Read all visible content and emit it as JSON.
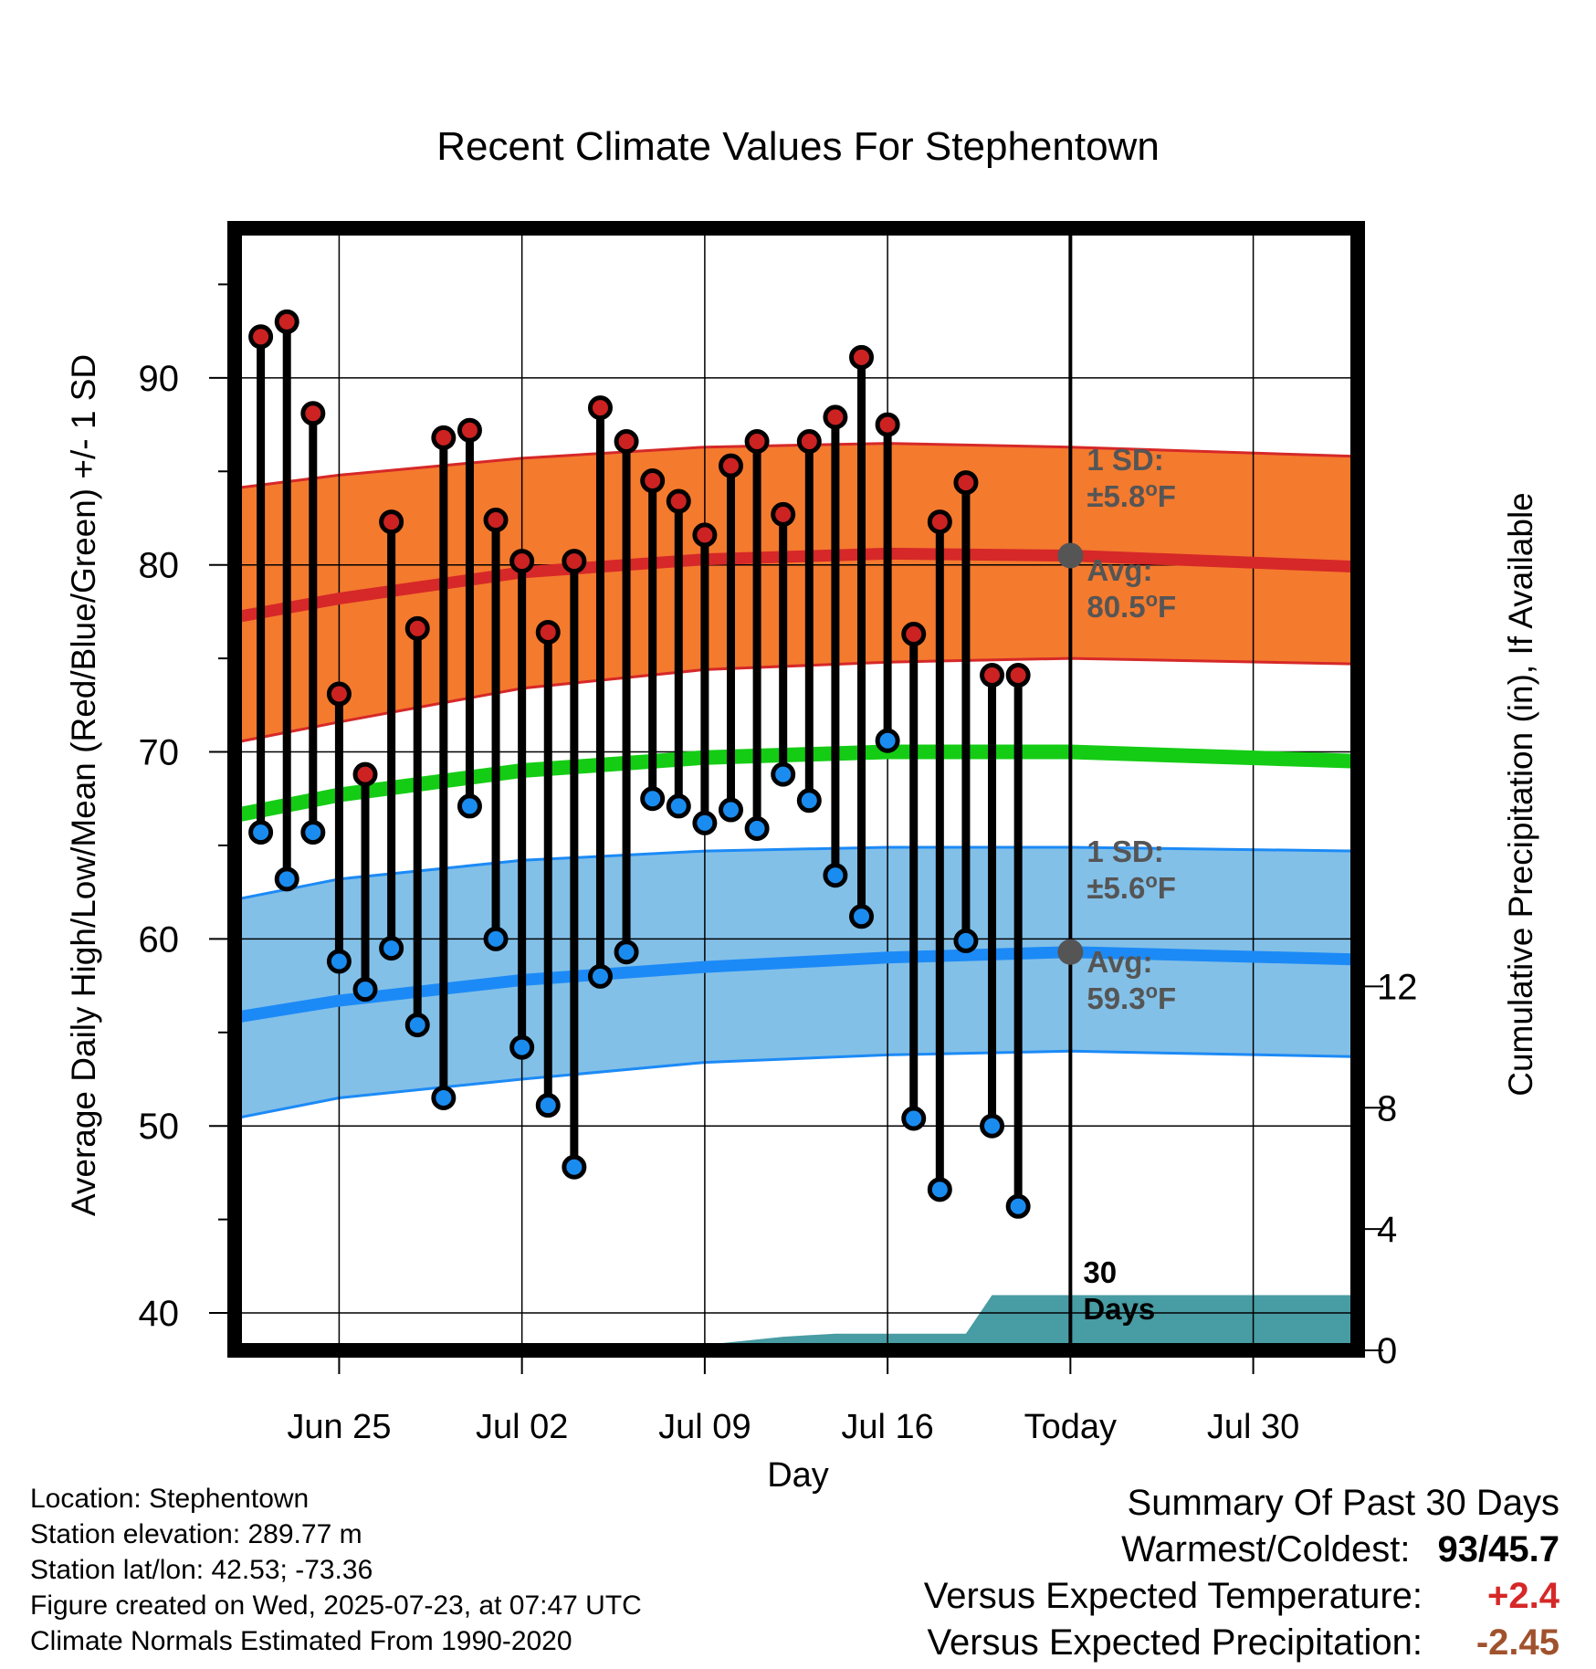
{
  "chart_data": {
    "type": "line",
    "title": "Recent Climate Values For Stephentown",
    "xlabel": "Day",
    "ylabel": "Average Daily High/Low/Mean (Red/Blue/Green) +/- 1 SD",
    "ylabel_right": "Cumulative Precipitation (in), If Available",
    "ylim": [
      38,
      98
    ],
    "ylim_right": [
      0,
      37
    ],
    "x_range": [
      "Jun 21",
      "Aug 03"
    ],
    "grid": true,
    "x_ticks": [
      "Jun 25",
      "Jul 02",
      "Jul 09",
      "Jul 16",
      "Today",
      "Jul 30"
    ],
    "y_ticks": [
      40,
      50,
      60,
      70,
      80,
      90
    ],
    "y_ticks_right": [
      0,
      4,
      8,
      12
    ],
    "observations": {
      "dates": [
        "Jun 22",
        "Jun 23",
        "Jun 24",
        "Jun 25",
        "Jun 26",
        "Jun 27",
        "Jun 28",
        "Jun 29",
        "Jun 30",
        "Jul 01",
        "Jul 02",
        "Jul 03",
        "Jul 04",
        "Jul 05",
        "Jul 06",
        "Jul 07",
        "Jul 08",
        "Jul 09",
        "Jul 10",
        "Jul 11",
        "Jul 12",
        "Jul 13",
        "Jul 14",
        "Jul 15",
        "Jul 16",
        "Jul 17",
        "Jul 18",
        "Jul 19",
        "Jul 20",
        "Jul 21",
        "Jul 22"
      ],
      "highs": [
        92.2,
        93.0,
        88.1,
        73.1,
        68.8,
        82.3,
        76.6,
        86.8,
        87.2,
        82.4,
        80.2,
        76.4,
        80.2,
        88.4,
        86.6,
        84.5,
        83.4,
        81.6,
        85.3,
        86.6,
        82.7,
        86.6,
        87.9,
        91.1,
        87.5,
        76.3,
        82.3,
        84.4,
        74.1,
        74.1,
        null
      ],
      "lows": [
        65.7,
        63.2,
        65.7,
        58.8,
        57.3,
        59.5,
        55.4,
        51.5,
        67.1,
        60.0,
        54.2,
        51.1,
        47.8,
        58.0,
        59.3,
        67.5,
        67.1,
        66.2,
        66.9,
        65.9,
        68.8,
        67.4,
        63.4,
        61.2,
        70.6,
        50.4,
        46.6,
        59.9,
        50.0,
        45.7,
        null
      ]
    },
    "normals": {
      "dates": [
        "Jun 21",
        "Jun 25",
        "Jul 02",
        "Jul 09",
        "Jul 16",
        "Jul 23",
        "Aug 03"
      ],
      "high_avg": [
        77.2,
        78.2,
        79.6,
        80.3,
        80.6,
        80.5,
        79.9
      ],
      "high_sd_upper": [
        84.1,
        84.8,
        85.7,
        86.3,
        86.5,
        86.3,
        85.8
      ],
      "high_sd_lower": [
        70.5,
        71.6,
        73.4,
        74.4,
        74.8,
        75.0,
        74.7
      ],
      "mean_avg": [
        66.6,
        67.7,
        69.0,
        69.7,
        70.0,
        70.0,
        69.5
      ],
      "low_avg": [
        55.8,
        56.7,
        57.8,
        58.5,
        59.0,
        59.3,
        58.9
      ],
      "low_sd_upper": [
        62.1,
        63.2,
        64.2,
        64.7,
        64.9,
        64.9,
        64.7
      ],
      "low_sd_lower": [
        50.4,
        51.5,
        52.5,
        53.4,
        53.8,
        54.0,
        53.7
      ]
    },
    "precipitation": {
      "dates": [
        "Jul 06",
        "Jul 09",
        "Jul 12",
        "Jul 14",
        "Jul 19",
        "Jul 20",
        "Aug 03"
      ],
      "cumulative_in": [
        0.0,
        0.18,
        0.45,
        0.55,
        0.55,
        1.82,
        1.82
      ]
    },
    "today": "Jul 23",
    "annotations": {
      "high_sd": {
        "line1": "1 SD:",
        "line2": "±5.8",
        "unit": "F"
      },
      "high_avg": {
        "line1": "Avg:",
        "line2": "80.5",
        "unit": "F"
      },
      "low_sd": {
        "line1": "1 SD:",
        "line2": "±5.6",
        "unit": "F"
      },
      "low_avg": {
        "line1": "Avg:",
        "line2": "59.3",
        "unit": "F"
      },
      "precip_window": {
        "line1": "30",
        "line2": "Days"
      }
    },
    "colors": {
      "high_band": "#f47a2e",
      "high_line": "#d62828",
      "low_band": "#82c0e8",
      "low_line": "#1c8af6",
      "mean_line": "#14cc14",
      "precip": "#489ca4",
      "high_marker": "#cc2222",
      "low_marker": "#1a8cf0",
      "annotation": "#555555"
    }
  },
  "footer": {
    "location": "Location: Stephentown",
    "elevation": "Station elevation: 289.77 m",
    "latlon": "Station lat/lon: 42.53; -73.36",
    "created": "Figure created on Wed, 2025-07-23, at 07:47 UTC",
    "normals": "Climate Normals Estimated From 1990-2020"
  },
  "summary": {
    "title": "Summary Of Past 30 Days",
    "warmest_label": "Warmest/Coldest:",
    "warmest_value": "93/45.7",
    "temp_label": "Versus Expected Temperature:",
    "temp_value": "+2.4",
    "temp_color": "#d62828",
    "precip_label": "Versus Expected Precipitation:",
    "precip_value": "-2.45",
    "precip_color": "#a0522d"
  }
}
